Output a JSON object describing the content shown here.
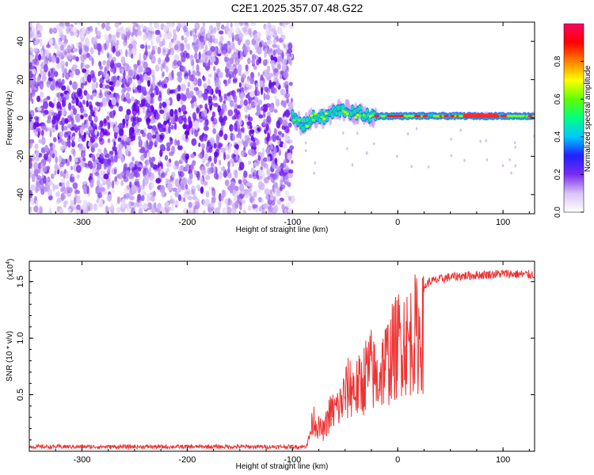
{
  "title": "C2E1.2025.357.07.48.G22",
  "chart_data": [
    {
      "type": "heatmap",
      "xlabel": "Height of straight line (km)",
      "ylabel": "Frequency (Hz)",
      "xlim": [
        -350,
        130
      ],
      "ylim": [
        -50,
        50
      ],
      "xticks": [
        -300,
        -200,
        -100,
        0,
        100
      ],
      "xtick_labels": [
        "-300",
        "-200",
        "-100",
        "0",
        "100"
      ],
      "yticks": [
        -40,
        -20,
        0,
        20,
        40
      ],
      "ytick_labels": [
        "-40",
        "-20",
        "0",
        "20",
        "40"
      ],
      "noise_region_x": [
        -350,
        -100
      ],
      "signal_track": [
        {
          "x": -100,
          "y": 0
        },
        {
          "x": -95,
          "y": -2
        },
        {
          "x": -90,
          "y": -4
        },
        {
          "x": -85,
          "y": -2
        },
        {
          "x": -80,
          "y": 0
        },
        {
          "x": -75,
          "y": 1
        },
        {
          "x": -70,
          "y": 0
        },
        {
          "x": -65,
          "y": 2
        },
        {
          "x": -60,
          "y": 3
        },
        {
          "x": -55,
          "y": 4
        },
        {
          "x": -50,
          "y": 4
        },
        {
          "x": -45,
          "y": 3
        },
        {
          "x": -40,
          "y": 2
        },
        {
          "x": -35,
          "y": 3
        },
        {
          "x": -30,
          "y": 1
        },
        {
          "x": -20,
          "y": 1
        },
        {
          "x": -10,
          "y": 1
        },
        {
          "x": 0,
          "y": 1
        },
        {
          "x": 20,
          "y": 1
        },
        {
          "x": 50,
          "y": 1
        },
        {
          "x": 80,
          "y": 1
        },
        {
          "x": 100,
          "y": 1
        },
        {
          "x": 130,
          "y": 1
        }
      ],
      "colorbar": {
        "label": "Normalized spectral amplitude",
        "range": [
          0,
          1
        ],
        "ticks": [
          0.0,
          0.2,
          0.4,
          0.6,
          0.8
        ],
        "tick_labels": [
          "0.0",
          "0.2",
          "0.4",
          "0.6",
          "0.8"
        ],
        "colors": [
          "#ffffff",
          "#d9c2f5",
          "#7a2cf0",
          "#2020ff",
          "#00c8ff",
          "#00ff80",
          "#60ff00",
          "#ffff00",
          "#ff8000",
          "#ff0000",
          "#ff0066"
        ]
      }
    },
    {
      "type": "line",
      "xlabel": "Height of straight line (km)",
      "ylabel": "SNR (10 * v/v)",
      "scale_label": "(x10",
      "scale_exp": "4",
      "scale_close": ")",
      "xlim": [
        -350,
        130
      ],
      "ylim": [
        0,
        1.68
      ],
      "xticks": [
        -300,
        -200,
        -100,
        0,
        100
      ],
      "xtick_labels": [
        "-300",
        "-200",
        "-100",
        "0",
        "100"
      ],
      "yticks": [
        0.5,
        1.0,
        1.5
      ],
      "ytick_labels": [
        "0.5",
        "1.0",
        "1.5"
      ],
      "color": "#ee3333",
      "series": [
        {
          "name": "SNR",
          "x": [
            -350,
            -90,
            -85,
            -80,
            -75,
            -70,
            -65,
            -60,
            -55,
            -50,
            -45,
            -40,
            -35,
            -30,
            -25,
            -20,
            -15,
            -10,
            -5,
            0,
            5,
            10,
            15,
            20,
            25,
            30,
            40,
            50,
            60,
            80,
            100,
            130
          ],
          "y": [
            0.04,
            0.04,
            0.12,
            0.4,
            0.28,
            0.25,
            0.45,
            0.5,
            0.55,
            0.7,
            0.8,
            0.75,
            0.8,
            0.95,
            1.0,
            0.85,
            1.0,
            1.1,
            1.2,
            1.3,
            1.4,
            1.3,
            1.45,
            1.4,
            1.45,
            1.5,
            1.52,
            1.54,
            1.55,
            1.56,
            1.57,
            1.56
          ]
        }
      ]
    }
  ]
}
